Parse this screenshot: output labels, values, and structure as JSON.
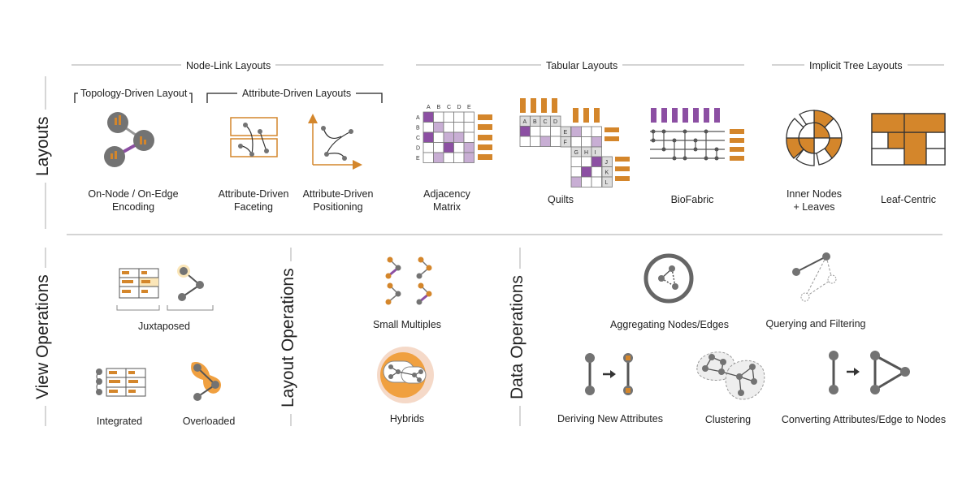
{
  "sections": {
    "layouts": "Layouts",
    "view_operations": "View Operations",
    "layout_operations": "Layout Operations",
    "data_operations": "Data Operations"
  },
  "groups": {
    "node_link": "Node-Link Layouts",
    "tabular": "Tabular Layouts",
    "implicit_tree": "Implicit Tree Layouts",
    "topology": "Topology-Driven Layout",
    "attribute": "Attribute-Driven Layouts"
  },
  "items": {
    "on_node_1": "On-Node / On-Edge",
    "on_node_2": "Encoding",
    "faceting_1": "Attribute-Driven",
    "faceting_2": "Faceting",
    "positioning_1": "Attribute-Driven",
    "positioning_2": "Positioning",
    "adjacency_1": "Adjacency",
    "adjacency_2": "Matrix",
    "quilts": "Quilts",
    "biofabric": "BioFabric",
    "inner_1": "Inner Nodes",
    "inner_2": "+ Leaves",
    "leaf_centric": "Leaf-Centric",
    "juxtaposed": "Juxtaposed",
    "integrated": "Integrated",
    "overloaded": "Overloaded",
    "small_multiples": "Small Multiples",
    "hybrids": "Hybrids",
    "aggregating": "Aggregating Nodes/Edges",
    "querying": "Querying and Filtering",
    "deriving": "Deriving New Attributes",
    "clustering": "Clustering",
    "converting": "Converting Attributes/Edge to Nodes"
  },
  "matrix_letters": {
    "adjacency": [
      "A",
      "B",
      "C",
      "D",
      "E"
    ],
    "quilts_row1": [
      "A",
      "B",
      "C",
      "D"
    ],
    "quilts_row2": [
      "E",
      "F"
    ],
    "quilts_row3": [
      "G",
      "H",
      "I"
    ],
    "quilts_row4": [
      "J",
      "K",
      "L"
    ]
  },
  "colors": {
    "orange": "#d4862b",
    "purple": "#8c4fa3",
    "light_purple": "#c8aed4",
    "gray_node": "#737373",
    "line": "#999999"
  }
}
